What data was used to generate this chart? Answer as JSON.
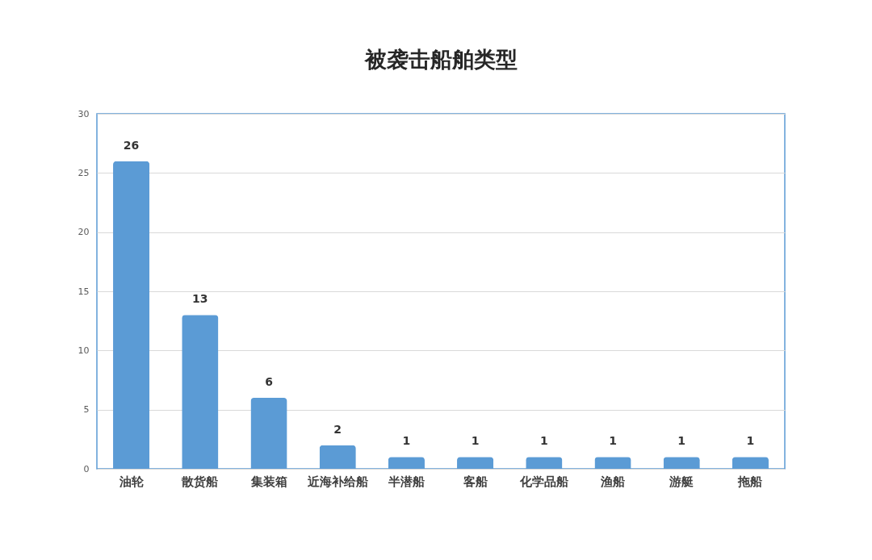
{
  "chart_data": {
    "type": "bar",
    "title": "被袭击船舶类型",
    "categories": [
      "油轮",
      "散货船",
      "集装箱",
      "近海补给船",
      "半潜船",
      "客船",
      "化学品船",
      "渔船",
      "游艇",
      "拖船"
    ],
    "values": [
      26,
      13,
      6,
      2,
      1,
      1,
      1,
      1,
      1,
      1
    ],
    "color": "#5b9bd5",
    "ylim": [
      0,
      30
    ],
    "yticks": [
      0,
      5,
      10,
      15,
      20,
      25,
      30
    ],
    "grid": "y",
    "data_labels": true
  }
}
